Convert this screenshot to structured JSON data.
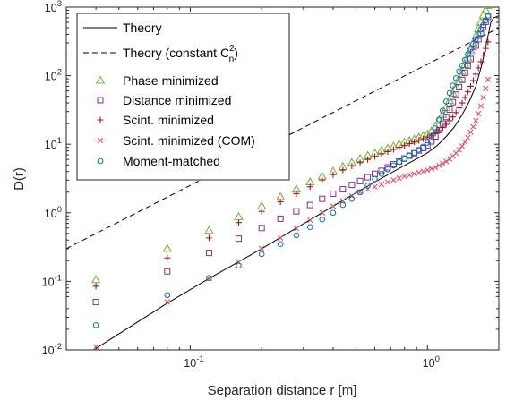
{
  "chart_data": {
    "type": "scatter",
    "xscale": "log",
    "yscale": "log",
    "xlim": [
      0.03,
      2.0
    ],
    "ylim": [
      0.01,
      1000
    ],
    "xlabel": "Separation distance r [m]",
    "ylabel": "D(r)",
    "x_tick_labels": [
      {
        "value": 0.1,
        "base": "10",
        "exp": "-1"
      },
      {
        "value": 1,
        "base": "10",
        "exp": "0"
      }
    ],
    "y_tick_labels": [
      {
        "value": 0.01,
        "base": "10",
        "exp": "-2"
      },
      {
        "value": 0.1,
        "base": "10",
        "exp": "-1"
      },
      {
        "value": 1,
        "base": "10",
        "exp": "0"
      },
      {
        "value": 10,
        "base": "10",
        "exp": "1"
      },
      {
        "value": 100,
        "base": "10",
        "exp": "2"
      },
      {
        "value": 1000,
        "base": "10",
        "exp": "3"
      }
    ],
    "grid": false,
    "legend_position": "top-left",
    "series": [
      {
        "name": "Theory",
        "name_sup": "",
        "name_tail": "",
        "style": "solid-line",
        "color": "#000000",
        "x": [
          0.04,
          0.08,
          0.12,
          0.2,
          0.3,
          0.4,
          0.5,
          0.6,
          0.7,
          0.8,
          0.9,
          1.0,
          1.1,
          1.2,
          1.3,
          1.4,
          1.5,
          1.6,
          1.7,
          1.8,
          1.85,
          1.9,
          1.95,
          2.0
        ],
        "y": [
          0.0105,
          0.048,
          0.11,
          0.3,
          0.69,
          1.25,
          1.96,
          2.8,
          3.8,
          4.9,
          6.1,
          7.5,
          9.6,
          13,
          18,
          27,
          42,
          70,
          150,
          380,
          600,
          700,
          720,
          750
        ]
      },
      {
        "name": "Theory (constant C",
        "name_sup": "2",
        "name_sub": "n",
        "name_tail": ")",
        "style": "dashed-line",
        "color": "#000000",
        "x": [
          0.03,
          2.0
        ],
        "y": [
          0.3,
          500
        ]
      },
      {
        "name": "Phase minimized",
        "style": "triangle",
        "color": "#77AC30",
        "x": [
          0.04,
          0.08,
          0.12,
          0.16,
          0.2,
          0.24,
          0.28,
          0.32,
          0.36,
          0.4,
          0.44,
          0.48,
          0.52,
          0.56,
          0.6,
          0.64,
          0.68,
          0.72,
          0.76,
          0.8,
          0.84,
          0.88,
          0.92,
          0.96,
          1.0,
          1.04,
          1.08,
          1.12,
          1.16,
          1.2,
          1.24,
          1.28,
          1.32,
          1.36,
          1.4,
          1.44,
          1.48,
          1.52,
          1.56,
          1.6,
          1.64,
          1.68,
          1.72,
          1.76,
          1.8
        ],
        "y": [
          0.105,
          0.3,
          0.55,
          0.87,
          1.25,
          1.7,
          2.2,
          2.8,
          3.4,
          4.0,
          4.7,
          5.4,
          6.1,
          6.8,
          7.4,
          8.1,
          8.7,
          9.3,
          10,
          10.6,
          11.2,
          11.8,
          12.5,
          13.2,
          14,
          15.5,
          18,
          22,
          27,
          34,
          43,
          55,
          70,
          90,
          115,
          145,
          185,
          235,
          300,
          380,
          480,
          600,
          760,
          900,
          1050
        ]
      },
      {
        "name": "Distance minimized",
        "style": "square",
        "color": "#7E2F8E",
        "x": [
          0.04,
          0.08,
          0.12,
          0.16,
          0.2,
          0.24,
          0.28,
          0.32,
          0.36,
          0.4,
          0.44,
          0.48,
          0.52,
          0.56,
          0.6,
          0.64,
          0.68,
          0.72,
          0.76,
          0.8,
          0.84,
          0.88,
          0.92,
          0.96,
          1.0,
          1.04,
          1.08,
          1.12,
          1.16,
          1.2,
          1.24,
          1.28,
          1.32,
          1.36,
          1.4,
          1.44,
          1.48,
          1.52,
          1.56,
          1.6,
          1.64,
          1.68,
          1.72,
          1.76,
          1.8
        ],
        "y": [
          0.05,
          0.14,
          0.26,
          0.42,
          0.6,
          0.82,
          1.05,
          1.3,
          1.6,
          1.9,
          2.2,
          2.55,
          2.9,
          3.3,
          3.7,
          4.1,
          4.6,
          5.1,
          5.6,
          6.2,
          6.8,
          7.4,
          8.1,
          8.8,
          9.6,
          11,
          13,
          16,
          20,
          25,
          32,
          41,
          53,
          68,
          87,
          110,
          140,
          175,
          220,
          275,
          340,
          420,
          510,
          610,
          720
        ]
      },
      {
        "name": "Scint. minimized",
        "style": "plus",
        "color": "#A2142F",
        "x": [
          0.04,
          0.08,
          0.12,
          0.16,
          0.2,
          0.24,
          0.28,
          0.32,
          0.36,
          0.4,
          0.44,
          0.48,
          0.52,
          0.56,
          0.6,
          0.64,
          0.68,
          0.72,
          0.76,
          0.8,
          0.84,
          0.88,
          0.92,
          0.96,
          1.0,
          1.04,
          1.08,
          1.12,
          1.16,
          1.2,
          1.24,
          1.28,
          1.32,
          1.36,
          1.4,
          1.44,
          1.48,
          1.52,
          1.56,
          1.6,
          1.64,
          1.68,
          1.72,
          1.76,
          1.8
        ],
        "y": [
          0.085,
          0.22,
          0.43,
          0.72,
          1.05,
          1.45,
          1.9,
          2.4,
          3.0,
          3.6,
          4.2,
          4.8,
          5.4,
          6.0,
          6.6,
          7.2,
          7.8,
          8.4,
          9.0,
          9.6,
          10.2,
          10.8,
          11.4,
          12,
          12.7,
          13.5,
          14.5,
          15.8,
          17.5,
          19.5,
          22,
          25,
          29,
          34,
          40,
          48,
          58,
          70,
          85,
          105,
          130,
          160,
          200,
          250,
          310
        ]
      },
      {
        "name": "Scint. minimized (COM)",
        "style": "cross",
        "color": "#D95365",
        "x": [
          0.04,
          0.08,
          0.12,
          0.16,
          0.2,
          0.24,
          0.28,
          0.32,
          0.36,
          0.4,
          0.44,
          0.48,
          0.52,
          0.56,
          0.6,
          0.64,
          0.68,
          0.72,
          0.76,
          0.8,
          0.84,
          0.88,
          0.92,
          0.96,
          1.0,
          1.04,
          1.08,
          1.12,
          1.16,
          1.2,
          1.24,
          1.28,
          1.32,
          1.36,
          1.4,
          1.44,
          1.48,
          1.52,
          1.56,
          1.6,
          1.64,
          1.68,
          1.72,
          1.76,
          1.8
        ],
        "y": [
          0.011,
          0.05,
          0.11,
          0.19,
          0.3,
          0.43,
          0.59,
          0.78,
          1.0,
          1.25,
          1.5,
          1.75,
          2.0,
          2.2,
          2.4,
          2.6,
          2.8,
          3.0,
          3.2,
          3.4,
          3.55,
          3.7,
          3.85,
          4.0,
          4.2,
          4.4,
          4.6,
          4.9,
          5.2,
          5.6,
          6.1,
          6.7,
          7.4,
          8.3,
          9.4,
          10.8,
          12.5,
          15,
          18,
          22,
          28,
          36,
          48,
          65,
          88
        ]
      },
      {
        "name": "Moment-matched",
        "style": "circle",
        "color": "#0072BD",
        "x": [
          0.04,
          0.08,
          0.12,
          0.16,
          0.2,
          0.24,
          0.28,
          0.32,
          0.36,
          0.4,
          0.44,
          0.48,
          0.52,
          0.56,
          0.6,
          0.64,
          0.68,
          0.72,
          0.76,
          0.8,
          0.84,
          0.88,
          0.92,
          0.96,
          1.0,
          1.04,
          1.08,
          1.12,
          1.16,
          1.2,
          1.24,
          1.28,
          1.32,
          1.36,
          1.4,
          1.44,
          1.48,
          1.52,
          1.56,
          1.6,
          1.64,
          1.68,
          1.72,
          1.76,
          1.8
        ],
        "y": [
          0.023,
          0.063,
          0.112,
          0.17,
          0.25,
          0.35,
          0.47,
          0.62,
          0.8,
          1.0,
          1.3,
          1.6,
          2.0,
          2.5,
          3.1,
          3.7,
          4.3,
          4.9,
          5.5,
          6.1,
          6.8,
          7.5,
          8.3,
          9.2,
          10.5,
          13,
          17,
          23,
          31,
          42,
          56,
          72,
          92,
          115,
          140,
          170,
          205,
          245,
          290,
          340,
          400,
          470,
          550,
          640,
          750
        ]
      }
    ]
  }
}
